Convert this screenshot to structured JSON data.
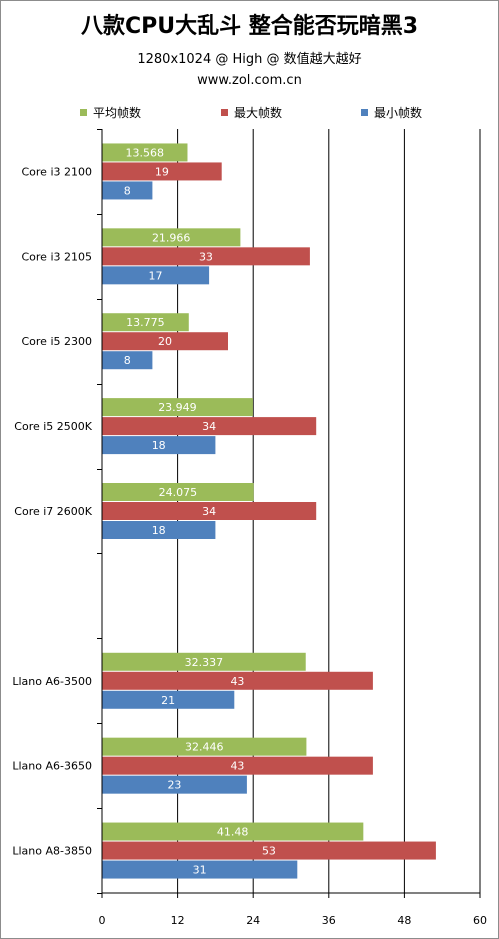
{
  "title": "八款CPU大乱斗 整合能否玩暗黑3",
  "subtitle": "1280x1024 @ High @ 数值越大越好",
  "website": "www.zol.com.cn",
  "chart_data": {
    "type": "bar",
    "orientation": "horizontal",
    "title": "八款CPU大乱斗 整合能否玩暗黑3",
    "subtitle": "1280x1024 @ High @ 数值越大越好",
    "categories": [
      "Core i3 2100",
      "Core i3 2105",
      "Core i5 2300",
      "Core i5 2500K",
      "Core i7 2600K",
      "",
      "Llano A6-3500",
      "Llano A6-3650",
      "Llano A8-3850"
    ],
    "series": [
      {
        "name": "平均帧数",
        "color": "#9bbb59",
        "values": [
          13.568,
          21.966,
          13.775,
          23.949,
          24.075,
          null,
          32.337,
          32.446,
          41.48
        ]
      },
      {
        "name": "最大帧数",
        "color": "#c0504d",
        "values": [
          19,
          33,
          20,
          34,
          34,
          null,
          43,
          43,
          53
        ]
      },
      {
        "name": "最小帧数",
        "color": "#4f81bd",
        "values": [
          8,
          17,
          8,
          18,
          18,
          null,
          21,
          23,
          31
        ]
      }
    ],
    "value_labels": [
      [
        "13.568",
        "21.966",
        "13.775",
        "23.949",
        "24.075",
        "",
        "32.337",
        "32.446",
        "41.48"
      ],
      [
        "19",
        "33",
        "20",
        "34",
        "34",
        "",
        "43",
        "43",
        "53"
      ],
      [
        "8",
        "17",
        "8",
        "18",
        "18",
        "",
        "21",
        "23",
        "31"
      ]
    ],
    "xlim": [
      0,
      60
    ],
    "ticks": [
      "0",
      "12",
      "24",
      "36",
      "48",
      "60"
    ],
    "grid": true,
    "legend_position": "top"
  }
}
